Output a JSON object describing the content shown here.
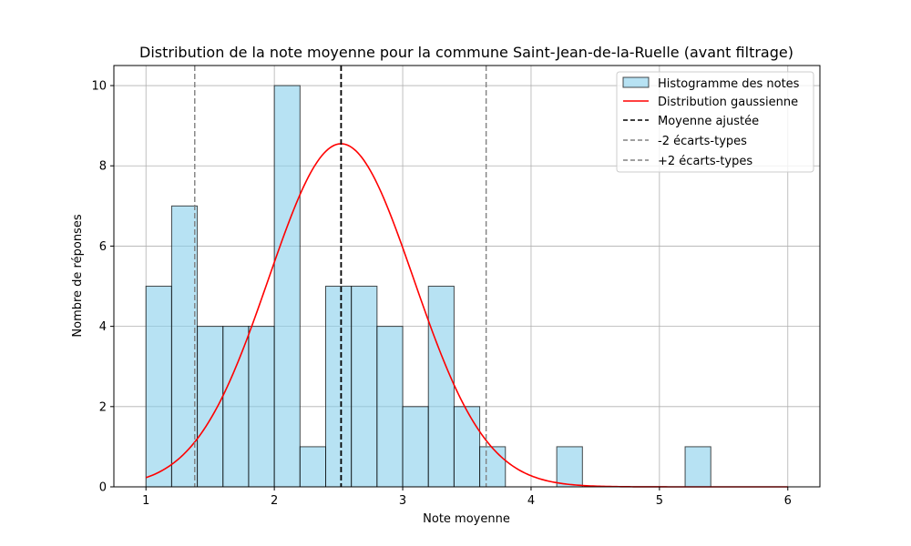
{
  "chart_data": {
    "type": "bar",
    "title": "Distribution de la note moyenne pour la commune Saint-Jean-de-la-Ruelle (avant filtrage)",
    "xlabel": "Note moyenne",
    "ylabel": "Nombre de réponses",
    "xlim": [
      0.75,
      6.25
    ],
    "ylim": [
      0,
      10.5
    ],
    "x_ticks": [
      1,
      2,
      3,
      4,
      5,
      6
    ],
    "y_ticks": [
      0,
      2,
      4,
      6,
      8,
      10
    ],
    "grid": true,
    "legend_position": "top-right",
    "histogram": {
      "name": "Histogramme des notes",
      "bin_edges": [
        1.0,
        1.2,
        1.4,
        1.6,
        1.8,
        2.0,
        2.2,
        2.4,
        2.6,
        2.8,
        3.0,
        3.2,
        3.4,
        3.6,
        3.8,
        4.0,
        4.2,
        4.4,
        4.6,
        4.8,
        5.0,
        5.2,
        5.4
      ],
      "counts": [
        5,
        7,
        4,
        4,
        4,
        10,
        1,
        5,
        5,
        4,
        2,
        5,
        2,
        1,
        0,
        0,
        1,
        0,
        0,
        0,
        0,
        1
      ],
      "color": "#87ceeb"
    },
    "gaussian": {
      "name": "Distribution gaussienne",
      "mean": 2.52,
      "std": 0.565,
      "peak": 8.55,
      "x_range": [
        1,
        6
      ],
      "color": "#ff0000"
    },
    "lines": [
      {
        "name": "Moyenne ajustée",
        "x": 2.52,
        "color": "#000000"
      },
      {
        "name": "-2 écarts-types",
        "x": 1.38,
        "color": "#808080"
      },
      {
        "name": "+2 écarts-types",
        "x": 3.65,
        "color": "#808080"
      }
    ]
  }
}
